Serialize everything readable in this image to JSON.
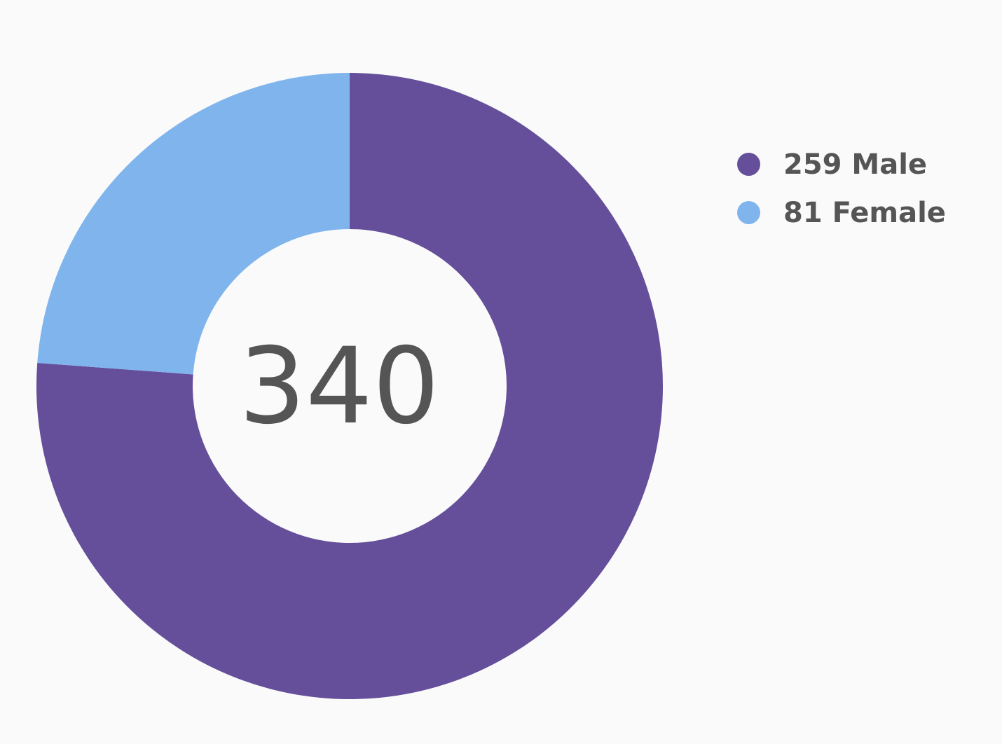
{
  "chart_data": {
    "type": "pie",
    "variant": "donut",
    "center_label": "340",
    "categories": [
      "Male",
      "Female"
    ],
    "values": [
      259,
      81
    ],
    "colors": [
      "#654f9a",
      "#7fb4ed"
    ],
    "legend": {
      "position": "right",
      "entries": [
        "259 Male",
        "81 Female"
      ]
    }
  }
}
